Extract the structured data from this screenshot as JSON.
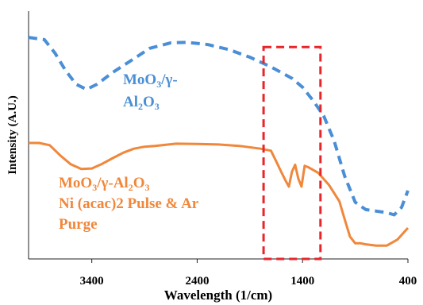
{
  "chart_data": {
    "type": "line",
    "title": "",
    "xlabel": "Wavelength (1/cm)",
    "ylabel": "Intensity (A.U.)",
    "xlim": [
      4000,
      400
    ],
    "x_reversed": true,
    "ylim": [
      0,
      1
    ],
    "x_ticks": [
      3400,
      2400,
      1400,
      400
    ],
    "y_ticks_shown": false,
    "grid": false,
    "legend": "none",
    "series": [
      {
        "color": "#4A8FD6",
        "dash": "dashed",
        "points": [
          [
            4000,
            0.894
          ],
          [
            3850,
            0.885
          ],
          [
            3750,
            0.831
          ],
          [
            3650,
            0.761
          ],
          [
            3550,
            0.705
          ],
          [
            3450,
            0.684
          ],
          [
            3350,
            0.705
          ],
          [
            3200,
            0.753
          ],
          [
            3000,
            0.808
          ],
          [
            2850,
            0.85
          ],
          [
            2650,
            0.872
          ],
          [
            2500,
            0.874
          ],
          [
            2300,
            0.865
          ],
          [
            2100,
            0.845
          ],
          [
            1900,
            0.814
          ],
          [
            1700,
            0.775
          ],
          [
            1500,
            0.729
          ],
          [
            1400,
            0.693
          ],
          [
            1300,
            0.639
          ],
          [
            1200,
            0.578
          ],
          [
            1100,
            0.476
          ],
          [
            1000,
            0.334
          ],
          [
            900,
            0.229
          ],
          [
            800,
            0.199
          ],
          [
            700,
            0.193
          ],
          [
            600,
            0.187
          ],
          [
            530,
            0.178
          ],
          [
            460,
            0.208
          ],
          [
            400,
            0.276
          ]
        ]
      },
      {
        "color": "#F0873A",
        "dash": "solid",
        "points": [
          [
            4000,
            0.468
          ],
          [
            3900,
            0.468
          ],
          [
            3800,
            0.459
          ],
          [
            3700,
            0.418
          ],
          [
            3600,
            0.382
          ],
          [
            3500,
            0.363
          ],
          [
            3400,
            0.365
          ],
          [
            3300,
            0.384
          ],
          [
            3200,
            0.407
          ],
          [
            3100,
            0.429
          ],
          [
            3000,
            0.445
          ],
          [
            2900,
            0.453
          ],
          [
            2800,
            0.456
          ],
          [
            2600,
            0.465
          ],
          [
            2400,
            0.464
          ],
          [
            2200,
            0.462
          ],
          [
            2000,
            0.456
          ],
          [
            1800,
            0.445
          ],
          [
            1700,
            0.437
          ],
          [
            1650,
            0.394
          ],
          [
            1600,
            0.349
          ],
          [
            1560,
            0.315
          ],
          [
            1530,
            0.292
          ],
          [
            1500,
            0.352
          ],
          [
            1470,
            0.38
          ],
          [
            1440,
            0.324
          ],
          [
            1410,
            0.292
          ],
          [
            1380,
            0.376
          ],
          [
            1340,
            0.369
          ],
          [
            1250,
            0.347
          ],
          [
            1150,
            0.299
          ],
          [
            1050,
            0.232
          ],
          [
            1000,
            0.16
          ],
          [
            950,
            0.09
          ],
          [
            900,
            0.063
          ],
          [
            850,
            0.063
          ],
          [
            800,
            0.059
          ],
          [
            700,
            0.054
          ],
          [
            600,
            0.054
          ],
          [
            500,
            0.078
          ],
          [
            400,
            0.125
          ]
        ]
      }
    ],
    "annotations": [
      {
        "lines": [
          [
            "MoO",
            "3",
            "/γ-"
          ],
          [
            "Al",
            "2",
            "O",
            "3"
          ]
        ],
        "color": "#4A8FD6"
      },
      {
        "lines": [
          [
            "MoO",
            "3",
            "/γ-Al",
            "2",
            "O",
            "3"
          ],
          [
            "Ni (acac)2 Pulse & Ar"
          ],
          [
            "Purge"
          ]
        ],
        "color": "#F0873A"
      }
    ],
    "highlight_box": {
      "x_range": [
        1770,
        1230
      ],
      "y_range": [
        0.0,
        0.855
      ],
      "color": "#E8262A",
      "dash": "dashed"
    }
  }
}
